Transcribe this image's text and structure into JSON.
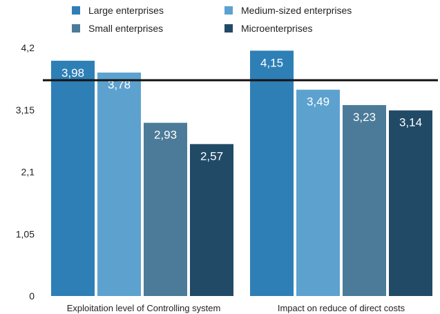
{
  "chart_data": {
    "type": "bar",
    "categories": [
      "Exploitation level of Controlling system",
      "Impact on reduce of direct costs"
    ],
    "series": [
      {
        "name": "Large enterprises",
        "values": [
          3.98,
          4.15
        ],
        "labels": [
          "3,98",
          "4,15"
        ],
        "color": "#2e7fb6"
      },
      {
        "name": "Medium-sized enterprises",
        "values": [
          3.78,
          3.49
        ],
        "labels": [
          "3,78",
          "3,49"
        ],
        "color": "#5da2cf"
      },
      {
        "name": "Small enterprises",
        "values": [
          2.93,
          3.23
        ],
        "labels": [
          "2,93",
          "3,23"
        ],
        "color": "#4b7b98"
      },
      {
        "name": "Microenterprises",
        "values": [
          2.57,
          3.14
        ],
        "labels": [
          "2,57",
          "3,14"
        ],
        "color": "#214a66"
      }
    ],
    "reference_line": {
      "value": 3.65,
      "color": "#111111"
    },
    "ylim": [
      0,
      4.2
    ],
    "yticks": [
      0,
      1.05,
      2.1,
      3.15,
      4.2
    ],
    "ytick_labels": [
      "0",
      "1,05",
      "2,1",
      "3,15",
      "4,2"
    ],
    "legend_position": "top",
    "grid": false,
    "title": "",
    "xlabel": "",
    "ylabel": ""
  }
}
